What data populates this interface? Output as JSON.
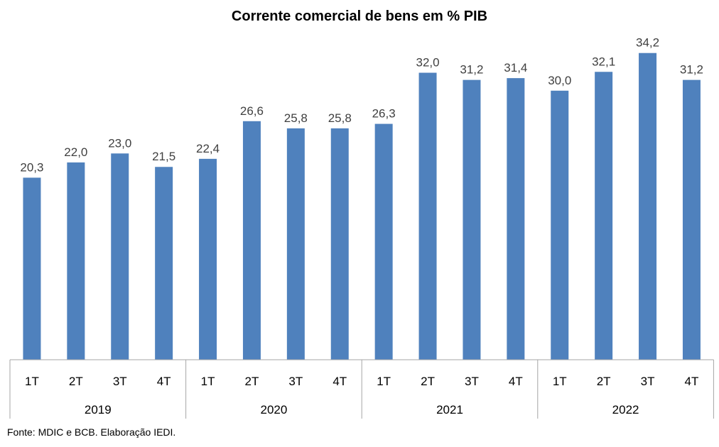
{
  "title": "Corrente comercial de bens em % PIB",
  "source": "Fonte: MDIC e BCB. Elaboração IEDI.",
  "colors": {
    "bar": "#4F81BD",
    "axis": "#A6A6A6",
    "label": "#404040"
  },
  "chart_data": {
    "type": "bar",
    "title": "Corrente comercial de bens em % PIB",
    "xlabel": "",
    "ylabel": "",
    "ylim": [
      0,
      35
    ],
    "grid": false,
    "legend": "none",
    "groups": [
      {
        "label": "2019",
        "categories": [
          "1T",
          "2T",
          "3T",
          "4T"
        ],
        "values": [
          20.3,
          22.0,
          23.0,
          21.5
        ],
        "labels": [
          "20,3",
          "22,0",
          "23,0",
          "21,5"
        ]
      },
      {
        "label": "2020",
        "categories": [
          "1T",
          "2T",
          "3T",
          "4T"
        ],
        "values": [
          22.4,
          26.6,
          25.8,
          25.8
        ],
        "labels": [
          "22,4",
          "26,6",
          "25,8",
          "25,8"
        ]
      },
      {
        "label": "2021",
        "categories": [
          "1T",
          "2T",
          "3T",
          "4T"
        ],
        "values": [
          26.3,
          32.0,
          31.2,
          31.4
        ],
        "labels": [
          "26,3",
          "32,0",
          "31,2",
          "31,4"
        ]
      },
      {
        "label": "2022",
        "categories": [
          "1T",
          "2T",
          "3T",
          "4T"
        ],
        "values": [
          30.0,
          32.1,
          34.2,
          31.2
        ],
        "labels": [
          "30,0",
          "32,1",
          "34,2",
          "31,2"
        ]
      }
    ]
  }
}
